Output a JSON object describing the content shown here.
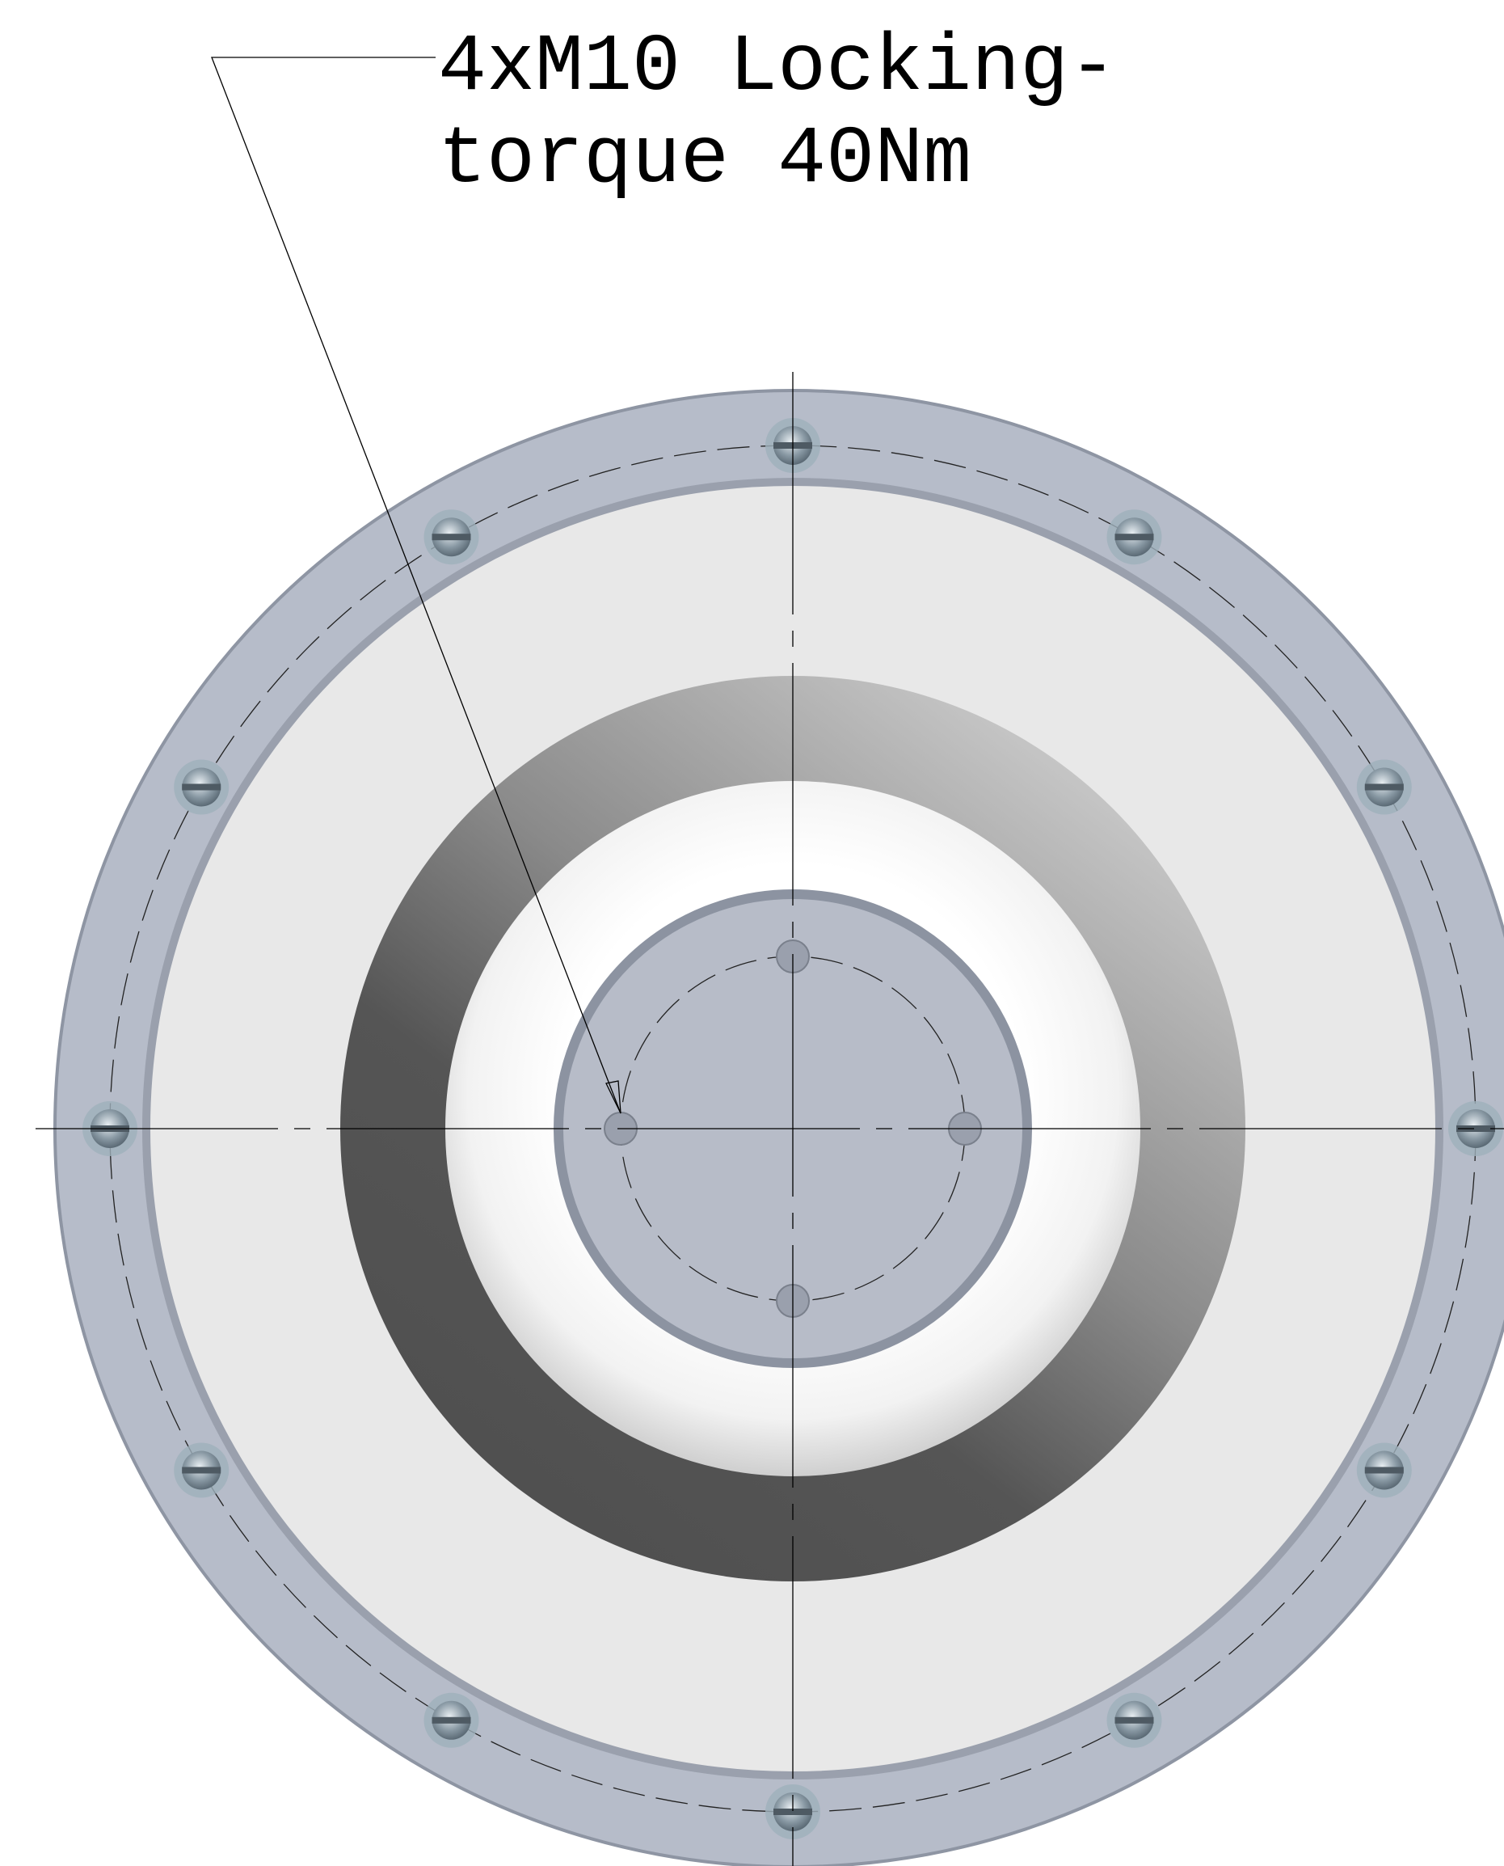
{
  "annotation": {
    "lines": [
      "4xM10 Locking-",
      "torque 40Nm"
    ]
  }
}
